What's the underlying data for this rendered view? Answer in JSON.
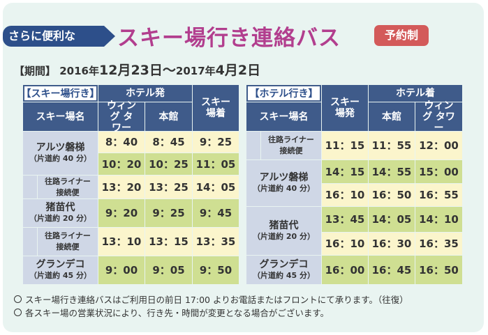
{
  "header": {
    "tag": "さらに便利な",
    "title": "スキー場行き連絡バス",
    "badge": "予約制",
    "period_label": "【期間】",
    "period_prefix": "2016年",
    "period_mid": "12月23日〜",
    "period_year2": "2017年",
    "period_end": "4月2日"
  },
  "left_table": {
    "section_label": "【スキー場行き】",
    "hdr_hotel_depart": "ホテル発",
    "hdr_ski_arrive": "スキー場着",
    "hdr_ski_name": "スキー場名",
    "hdr_wing": "ウィング タワー",
    "hdr_main": "本館",
    "resorts": [
      {
        "name": "アルツ磐梯",
        "sub": "（片道約 40 分）"
      },
      {
        "name": "猪苗代",
        "sub": "（片道約 20 分）"
      },
      {
        "name": "グランデコ",
        "sub": "（片道約 45 分）"
      }
    ],
    "liner": "往路ライナー 接続便",
    "rows": [
      [
        "8：40",
        "8：45",
        "9：25"
      ],
      [
        "10：20",
        "10：25",
        "11：05"
      ],
      [
        "13：20",
        "13：25",
        "14：05"
      ],
      [
        "9：20",
        "9：25",
        "9：45"
      ],
      [
        "13：10",
        "13：15",
        "13：35"
      ],
      [
        "9：00",
        "9：05",
        "9：50"
      ]
    ]
  },
  "right_table": {
    "section_label": "【ホテル行き】",
    "hdr_ski_name": "スキー場名",
    "hdr_ski_depart": "スキー場発",
    "hdr_hotel_arrive": "ホテル着",
    "hdr_main": "本館",
    "hdr_wing": "ウィング タワー",
    "resorts": [
      {
        "name": "アルツ磐梯",
        "sub": "（片道約 40 分）"
      },
      {
        "name": "猪苗代",
        "sub": "（片道約 20 分）"
      },
      {
        "name": "グランデコ",
        "sub": "（片道約 45 分）"
      }
    ],
    "liner": "往路ライナー 接続便",
    "rows": [
      [
        "11：15",
        "11：55",
        "12：00"
      ],
      [
        "14：15",
        "14：55",
        "15：00"
      ],
      [
        "16：10",
        "16：50",
        "16：55"
      ],
      [
        "13：45",
        "14：05",
        "14：10"
      ],
      [
        "16：10",
        "16：30",
        "16：35"
      ],
      [
        "16：00",
        "16：45",
        "16：50"
      ]
    ]
  },
  "notes": [
    "スキー場行き連絡バスはご利用日の前日 17:00 よりお電話またはフロントにて承ります。（往復）",
    "各スキー場の営業状況により、行き先・時間が変更となる場合がございます。"
  ],
  "colors": {
    "header_blue": "#3f5b8a",
    "name_cell": "#cfd7e6",
    "time_light": "#fbf5cc",
    "time_green": "#cfdf92",
    "title_magenta": "#b23e8e",
    "badge_red": "#d35a5a"
  }
}
